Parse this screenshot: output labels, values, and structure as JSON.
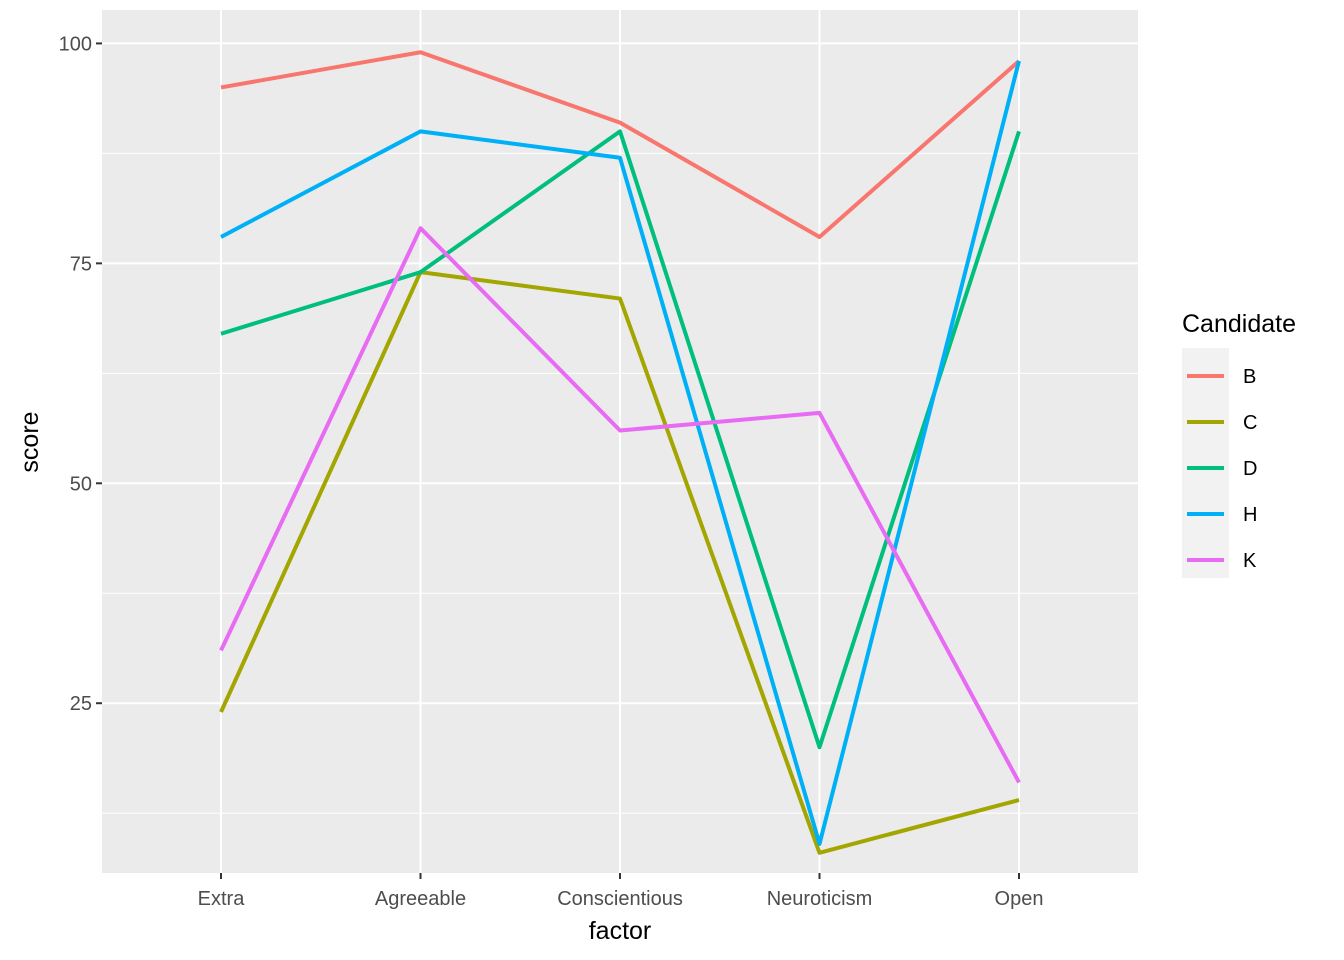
{
  "chart_data": {
    "type": "line",
    "xlabel": "factor",
    "ylabel": "score",
    "categories": [
      "Extra",
      "Agreeable",
      "Conscientious",
      "Neuroticism",
      "Open"
    ],
    "yticks": [
      25,
      50,
      75,
      100
    ],
    "ylim": [
      5.7,
      103.8
    ],
    "grid": true,
    "legend": {
      "title": "Candidate",
      "placement": "right"
    },
    "series": [
      {
        "name": "B",
        "color": "#F8766D",
        "values": [
          95,
          99,
          91,
          78,
          98
        ]
      },
      {
        "name": "C",
        "color": "#A3A500",
        "values": [
          24,
          74,
          71,
          8,
          14
        ]
      },
      {
        "name": "D",
        "color": "#00BF7D",
        "values": [
          67,
          74,
          90,
          20,
          90
        ]
      },
      {
        "name": "H",
        "color": "#00B0F6",
        "values": [
          78,
          90,
          87,
          9,
          98
        ]
      },
      {
        "name": "K",
        "color": "#E76BF3",
        "values": [
          31,
          79,
          56,
          58,
          16
        ]
      }
    ]
  }
}
